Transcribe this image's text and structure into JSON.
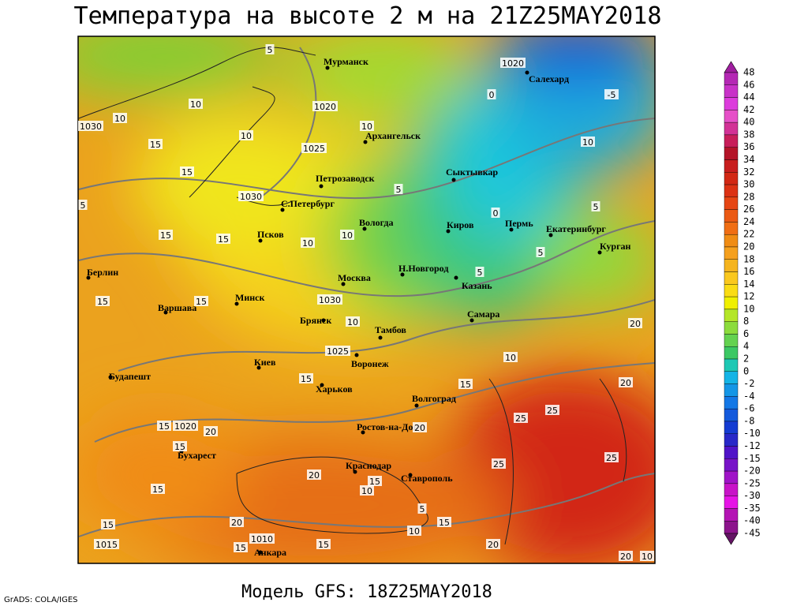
{
  "title": "Температура на высоте 2 м на 21Z25MAY2018",
  "footer": "Модель GFS: 18Z25MAY2018",
  "credit": "GrADS: COLA/IGES",
  "cities": [
    "Мурманск",
    "Салехард",
    "Архангельск",
    "Сыктывкар",
    "Петрозаводск",
    "С.Петербург",
    "Вологда",
    "Киров",
    "Пермь",
    "Екатеринбург",
    "Курган",
    "Псков",
    "Берлин",
    "Москва",
    "Н.Новгород",
    "Казань",
    "Минск",
    "Варшава",
    "Самара",
    "Брянск",
    "Тамбов",
    "Киев",
    "Воронеж",
    "Будапешт",
    "Харьков",
    "Волгоград",
    "Ростов-на-Дону",
    "Бухарест",
    "Краснодар",
    "Ставрополь",
    "Анкара"
  ],
  "contour_labels": [
    5,
    10,
    10,
    1030,
    15,
    1020,
    10,
    1025,
    15,
    10,
    1030,
    5,
    15,
    15,
    10,
    10,
    5,
    0,
    -5,
    10,
    0,
    5,
    5,
    5,
    15,
    15,
    1030,
    10,
    1025,
    20,
    10,
    15,
    15,
    20,
    25,
    25,
    15,
    1020,
    20,
    15,
    20,
    25,
    25,
    15,
    10,
    15,
    5,
    15,
    10,
    20,
    15,
    1015,
    1010,
    15,
    20,
    15,
    20,
    10,
    1020,
    20
  ],
  "colorbar": {
    "labels": [
      48,
      46,
      44,
      42,
      40,
      38,
      36,
      34,
      32,
      30,
      28,
      26,
      24,
      22,
      20,
      18,
      16,
      14,
      12,
      10,
      8,
      6,
      4,
      2,
      0,
      -2,
      -4,
      -6,
      -8,
      -10,
      -12,
      -15,
      -20,
      -25,
      -30,
      -35,
      -40,
      -45
    ],
    "colors": [
      "#a01ea0",
      "#b428b4",
      "#c832c8",
      "#dc3cdc",
      "#e650c8",
      "#d23296",
      "#c81e5a",
      "#b41428",
      "#c81e1e",
      "#d22814",
      "#dc3214",
      "#e64614",
      "#eb5a14",
      "#f06e14",
      "#f08c14",
      "#f5a01e",
      "#f5b41e",
      "#fac81e",
      "#fadc14",
      "#f0f000",
      "#b4e628",
      "#8cdc3c",
      "#64d250",
      "#3cc864",
      "#1ec8b4",
      "#14b4e6",
      "#1496e6",
      "#1478e6",
      "#145adc",
      "#143cd2",
      "#2828c8",
      "#5014c8",
      "#7814c8",
      "#a014c8",
      "#c814c8",
      "#e614e6",
      "#b414b4",
      "#8c148c",
      "#641464"
    ]
  }
}
